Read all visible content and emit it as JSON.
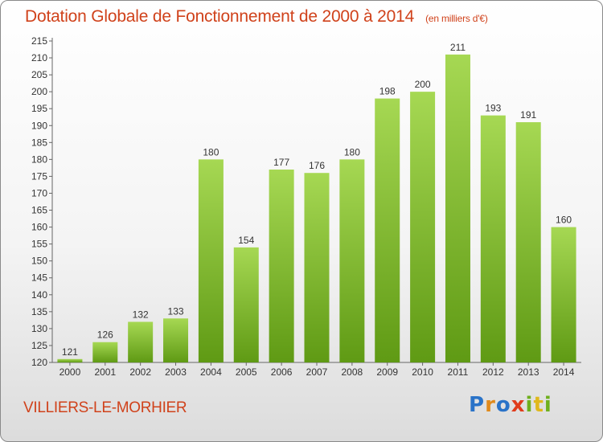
{
  "title": "Dotation Globale de Fonctionnement de 2000 à 2014",
  "unit_label": "(en milliers d'€)",
  "commune": "VILLIERS-LE-MORHIER",
  "logo": {
    "letters": [
      "P",
      "r",
      "o",
      "x",
      "i",
      "t",
      "i"
    ]
  },
  "colors": {
    "title": "#d0421b",
    "bar_light": "#a6d853",
    "bar_dark": "#5f9a14",
    "logo": [
      "#2a73c8",
      "#e08a1c",
      "#2a73c8",
      "#e03c1c",
      "#6fb01e",
      "#e0b81c",
      "#6fb01e"
    ]
  },
  "chart_data": {
    "type": "bar",
    "title": "Dotation Globale de Fonctionnement de 2000 à 2014",
    "xlabel": "",
    "ylabel": "",
    "categories": [
      "2000",
      "2001",
      "2002",
      "2003",
      "2004",
      "2005",
      "2006",
      "2007",
      "2008",
      "2009",
      "2010",
      "2011",
      "2012",
      "2013",
      "2014"
    ],
    "values": [
      121,
      126,
      132,
      133,
      180,
      154,
      177,
      176,
      180,
      198,
      200,
      211,
      193,
      191,
      160
    ],
    "ylim": [
      120,
      215
    ],
    "ytick_step": 5,
    "grid": false
  }
}
